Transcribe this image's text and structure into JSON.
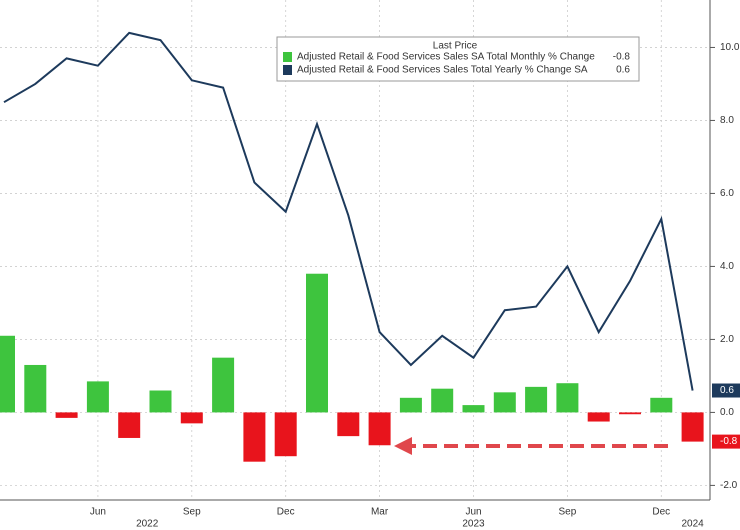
{
  "chart_data": {
    "type": "bar-line",
    "legend_title": "Last Price",
    "categories": [
      null,
      null,
      null,
      "Jun",
      null,
      null,
      "Sep",
      null,
      null,
      "Dec",
      null,
      null,
      "Mar",
      null,
      null,
      "Jun",
      null,
      null,
      "Sep",
      null,
      null,
      "Dec",
      null
    ],
    "year_row": [
      null,
      null,
      null,
      null,
      "2022",
      null,
      null,
      null,
      null,
      null,
      null,
      null,
      null,
      null,
      null,
      "2023",
      null,
      null,
      null,
      null,
      null,
      null,
      "2024"
    ],
    "series": [
      {
        "name": "Adjusted Retail & Food Services Sales SA Total Monthly % Change",
        "type": "bar",
        "color": "#3ec43e",
        "negative_color": "#e8141c",
        "values": [
          2.1,
          1.3,
          -0.15,
          0.85,
          -0.7,
          0.6,
          -0.3,
          1.5,
          -1.35,
          -1.2,
          3.8,
          -0.65,
          -0.9,
          0.4,
          0.65,
          0.2,
          0.55,
          0.7,
          0.8,
          -0.25,
          -0.05,
          0.4,
          -0.8
        ]
      },
      {
        "name": "Adjusted Retail & Food Services Sales Total Yearly % Change SA",
        "type": "line",
        "color": "#1d3a5c",
        "values": [
          8.5,
          9.0,
          9.7,
          9.5,
          10.4,
          10.2,
          9.1,
          8.9,
          6.3,
          5.5,
          7.9,
          5.4,
          2.2,
          1.3,
          2.1,
          1.5,
          2.8,
          2.9,
          4.0,
          2.2,
          3.6,
          5.3,
          0.6
        ]
      }
    ],
    "ylim": [
      -2.4,
      11.3
    ],
    "yticks": [
      {
        "value": -2,
        "label": "-2.0"
      },
      {
        "value": 0,
        "label": "0.0"
      },
      {
        "value": 2,
        "label": "2.0"
      },
      {
        "value": 4,
        "label": "4.0"
      },
      {
        "value": 6,
        "label": "6.0"
      },
      {
        "value": 8,
        "label": "8.0"
      },
      {
        "value": 10,
        "label": "10.0"
      }
    ],
    "grid": true
  }
}
